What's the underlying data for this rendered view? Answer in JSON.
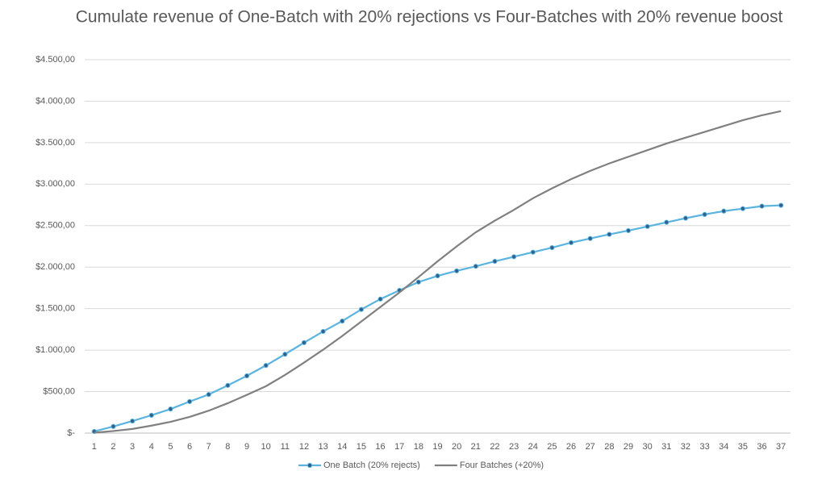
{
  "chart_data": {
    "type": "line",
    "title": "Cumulate revenue of One-Batch with 20% rejections vs Four-Batches with 20% revenue boost",
    "categories": [
      "1",
      "2",
      "3",
      "4",
      "5",
      "6",
      "7",
      "8",
      "9",
      "10",
      "11",
      "12",
      "13",
      "14",
      "15",
      "16",
      "17",
      "18",
      "19",
      "20",
      "21",
      "22",
      "23",
      "24",
      "25",
      "26",
      "27",
      "28",
      "29",
      "30",
      "31",
      "32",
      "33",
      "34",
      "35",
      "36",
      "37"
    ],
    "series": [
      {
        "name": "One Batch (20% rejects)",
        "color": "#5ab4e0",
        "marker": true,
        "values": [
          20,
          80,
          145,
          215,
          290,
          380,
          465,
          575,
          690,
          815,
          950,
          1090,
          1225,
          1350,
          1490,
          1615,
          1720,
          1820,
          1895,
          1955,
          2010,
          2070,
          2125,
          2180,
          2235,
          2295,
          2345,
          2395,
          2440,
          2490,
          2540,
          2590,
          2635,
          2675,
          2705,
          2735,
          2745
        ]
      },
      {
        "name": "Four Batches (+20%)",
        "color": "#808080",
        "marker": false,
        "values": [
          5,
          25,
          50,
          90,
          135,
          195,
          270,
          360,
          460,
          565,
          700,
          850,
          1005,
          1170,
          1345,
          1520,
          1695,
          1880,
          2070,
          2250,
          2420,
          2560,
          2690,
          2830,
          2950,
          3060,
          3160,
          3250,
          3330,
          3410,
          3490,
          3560,
          3630,
          3700,
          3770,
          3830,
          3880
        ]
      }
    ],
    "ylim": [
      0,
      4500
    ],
    "yticks": [
      {
        "value": 0,
        "label": "$-"
      },
      {
        "value": 500,
        "label": "$500,00"
      },
      {
        "value": 1000,
        "label": "$1.000,00"
      },
      {
        "value": 1500,
        "label": "$1.500,00"
      },
      {
        "value": 2000,
        "label": "$2.000,00"
      },
      {
        "value": 2500,
        "label": "$2.500,00"
      },
      {
        "value": 3000,
        "label": "$3.000,00"
      },
      {
        "value": 3500,
        "label": "$3.500,00"
      },
      {
        "value": 4000,
        "label": "$4.000,00"
      },
      {
        "value": 4500,
        "label": "$4.500,00"
      }
    ],
    "grid": true,
    "legend": "bottom"
  }
}
